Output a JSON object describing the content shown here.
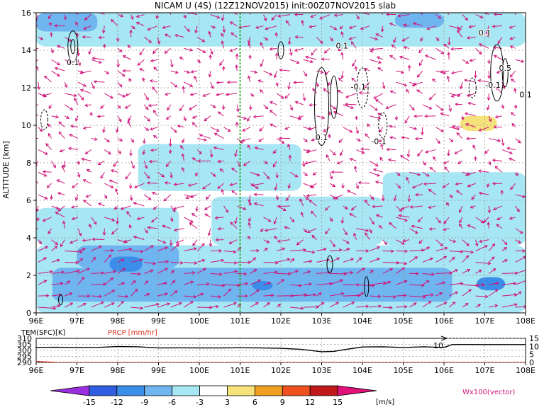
{
  "title": "NICAM U (4S) (12Z12NOV2015) init:00Z07NOV2015 slab",
  "chart_data": [
    {
      "type": "heatmap",
      "name": "zonal-wind-section",
      "ylabel": "ALTITUDE [km]",
      "xlim": [
        96,
        108
      ],
      "ylim": [
        0,
        16
      ],
      "x_ticks": [
        "96E",
        "97E",
        "98E",
        "99E",
        "100E",
        "101E",
        "102E",
        "103E",
        "104E",
        "105E",
        "106E",
        "107E",
        "108E"
      ],
      "y_ticks": [
        "0",
        "2",
        "4",
        "6",
        "8",
        "10",
        "12",
        "14",
        "16"
      ],
      "marker_line_x": 101,
      "contour_labels": [
        {
          "text": "0.1",
          "x": 96.9,
          "y": 13.2
        },
        {
          "text": "0.1",
          "x": 103.5,
          "y": 14.1
        },
        {
          "text": "0.1",
          "x": 107.0,
          "y": 14.8
        },
        {
          "text": "-0.1",
          "x": 103.9,
          "y": 11.9
        },
        {
          "text": "-0.1",
          "x": 107.2,
          "y": 12.0
        },
        {
          "text": "0.5",
          "x": 107.5,
          "y": 12.9
        },
        {
          "text": "0.1",
          "x": 103.0,
          "y": 9.2
        },
        {
          "text": "-0.1",
          "x": 104.4,
          "y": 9.0
        },
        {
          "text": "0.1",
          "x": 108.0,
          "y": 11.5
        }
      ],
      "shading": [
        {
          "level": -3,
          "color": "#a7e6f3",
          "regions": [
            {
              "x": [
                96,
                108
              ],
              "y": [
                0,
                3.6
              ]
            },
            {
              "x": [
                96,
                99.5
              ],
              "y": [
                3.6,
                5.6
              ]
            },
            {
              "x": [
                100.3,
                104.5
              ],
              "y": [
                3.6,
                6.2
              ]
            },
            {
              "x": [
                96,
                108
              ],
              "y": [
                14.2,
                16
              ]
            },
            {
              "x": [
                98.5,
                102.5
              ],
              "y": [
                6.5,
                9.0
              ]
            },
            {
              "x": [
                104.5,
                108
              ],
              "y": [
                3.6,
                7.5
              ]
            }
          ]
        },
        {
          "level": -6,
          "color": "#6fb5f0",
          "regions": [
            {
              "x": [
                96.4,
                106.2
              ],
              "y": [
                0.6,
                2.4
              ]
            },
            {
              "x": [
                97.0,
                99.5
              ],
              "y": [
                2.4,
                3.6
              ]
            },
            {
              "x": [
                96.0,
                97.5
              ],
              "y": [
                15.0,
                16
              ]
            },
            {
              "x": [
                104.8,
                106.0
              ],
              "y": [
                15.2,
                16
              ]
            }
          ]
        },
        {
          "level": -9,
          "color": "#3a8de8",
          "regions": [
            {
              "x": [
                97.8,
                98.6
              ],
              "y": [
                2.2,
                3.0
              ]
            },
            {
              "x": [
                101.3,
                101.8
              ],
              "y": [
                1.2,
                1.7
              ]
            },
            {
              "x": [
                106.8,
                107.5
              ],
              "y": [
                1.2,
                1.9
              ]
            }
          ]
        },
        {
          "level": 3,
          "color": "#f6e27a",
          "regions": [
            {
              "x": [
                106.4,
                107.3
              ],
              "y": [
                9.7,
                10.5
              ]
            }
          ]
        }
      ]
    },
    {
      "type": "line",
      "name": "surface-panel",
      "legend": [
        {
          "label": "TEM(SFC)[K]",
          "color": "#000000"
        },
        {
          "label": "PRCP [mm/hr]",
          "color": "#e0301e"
        }
      ],
      "x_ticks": [
        "96E",
        "97E",
        "98E",
        "99E",
        "100E",
        "101E",
        "102E",
        "103E",
        "104E",
        "105E",
        "106E",
        "107E",
        "108E"
      ],
      "left_ticks": [
        "310",
        "305",
        "300",
        "295",
        "290"
      ],
      "right_ticks": [
        "15",
        "10",
        "5",
        "0"
      ],
      "left_range": [
        290,
        310
      ],
      "right_range": [
        0,
        15
      ],
      "annotation": "10",
      "series": [
        {
          "name": "TEM(SFC)[K]",
          "axis": "left",
          "color": "#000000",
          "x": [
            96,
            96.5,
            97,
            97.5,
            98,
            98.5,
            99,
            99.5,
            100,
            100.5,
            101,
            101.5,
            102,
            102.5,
            103,
            103.3,
            103.6,
            104,
            104.5,
            105,
            105.5,
            106,
            106.2,
            106.5,
            107,
            107.5,
            108
          ],
          "y": [
            302.5,
            302.6,
            302.3,
            302.5,
            303.2,
            303.0,
            302.0,
            302.1,
            302.0,
            302.0,
            302.2,
            302.0,
            301.7,
            300.8,
            298.9,
            299.2,
            300.8,
            302.8,
            303.0,
            302.4,
            303.0,
            302.4,
            304.8,
            304.9,
            304.8,
            304.8,
            304.8
          ]
        },
        {
          "name": "PRCP [mm/hr]",
          "axis": "right",
          "color": "#e0301e",
          "x": [
            96,
            96.2,
            96.5,
            97,
            108
          ],
          "y": [
            0.6,
            0.4,
            0.1,
            0,
            0
          ]
        }
      ]
    },
    {
      "type": "colorbar",
      "name": "wind-colorbar",
      "ticks": [
        "-15",
        "-12",
        "-9",
        "-6",
        "-3",
        "3",
        "6",
        "9",
        "12",
        "15"
      ],
      "units": "[m/s]",
      "colors": [
        "#9b2fe0",
        "#2f5fe0",
        "#3a8de8",
        "#6fb5f0",
        "#a7e6f3",
        "#ffffff",
        "#f6e27a",
        "#f0a020",
        "#f05020",
        "#c01818",
        "#e0127a"
      ],
      "vector_label": "Wx100(vector)"
    }
  ]
}
